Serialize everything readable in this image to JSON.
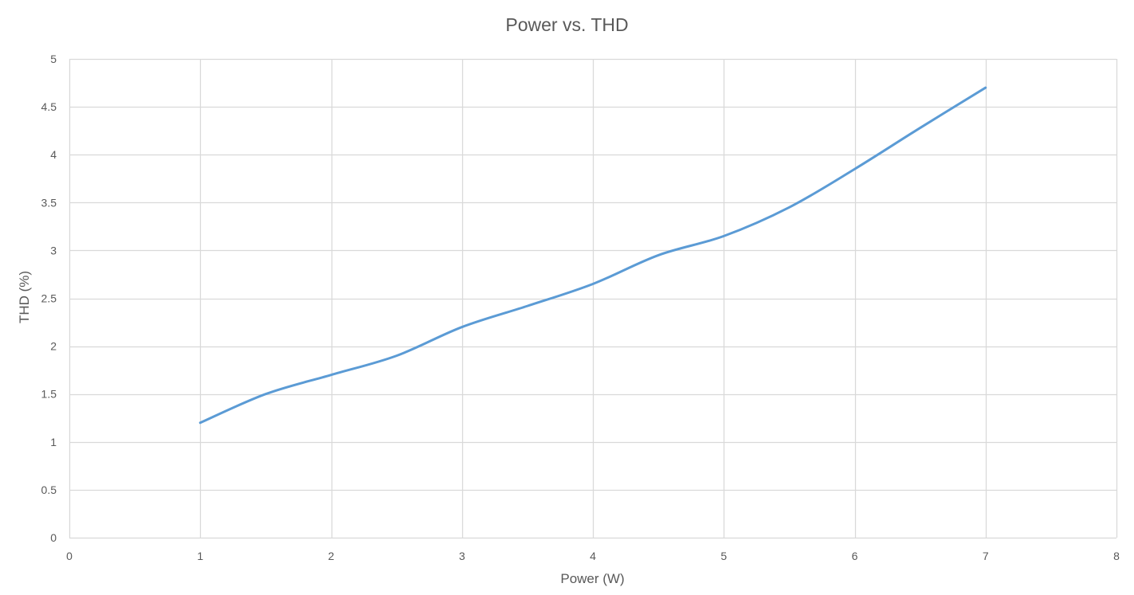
{
  "chart_data": {
    "type": "line",
    "title": "Power vs. THD",
    "xlabel": "Power (W)",
    "ylabel": "THD (%)",
    "xlim": [
      0,
      8
    ],
    "ylim": [
      0,
      5
    ],
    "x_ticks": [
      "0",
      "1",
      "2",
      "3",
      "4",
      "5",
      "6",
      "7",
      "8"
    ],
    "y_ticks": [
      "0",
      "0.5",
      "1",
      "1.5",
      "2",
      "2.5",
      "3",
      "3.5",
      "4",
      "4.5",
      "5"
    ],
    "grid": true,
    "smooth": true,
    "legend": "none",
    "series": [
      {
        "color": "#5b9bd5",
        "x": [
          1,
          1.5,
          2,
          2.5,
          3,
          3.5,
          4,
          4.5,
          5,
          5.5,
          6,
          6.5,
          7
        ],
        "y": [
          1.2,
          1.5,
          1.7,
          1.9,
          2.2,
          2.42,
          2.65,
          2.95,
          3.15,
          3.45,
          3.85,
          4.28,
          4.7
        ]
      }
    ]
  }
}
